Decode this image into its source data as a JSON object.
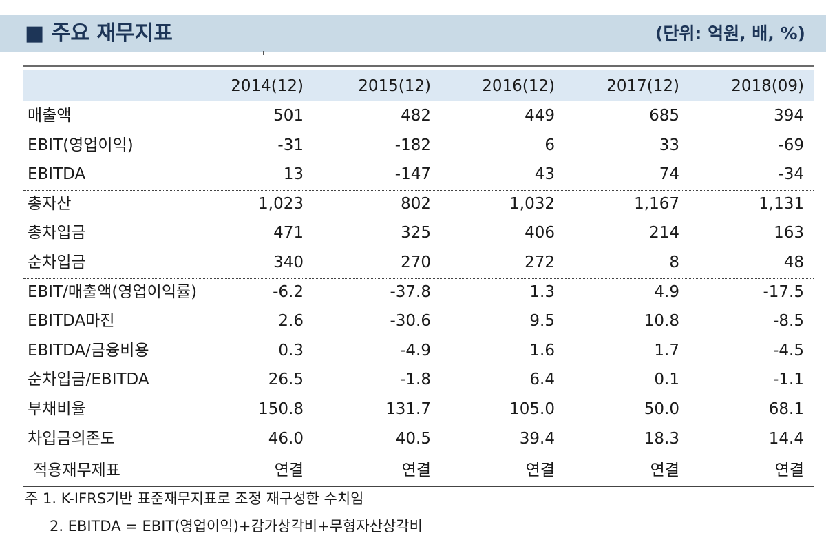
{
  "header": {
    "title": "■ 주요 재무지표",
    "unit": "(단위: 억원, 배, %)"
  },
  "table": {
    "columns": [
      "2014(12)",
      "2015(12)",
      "2016(12)",
      "2017(12)",
      "2018(09)"
    ],
    "groups": [
      [
        {
          "label": "매출액",
          "values": [
            "501",
            "482",
            "449",
            "685",
            "394"
          ]
        },
        {
          "label": "EBIT(영업이익)",
          "values": [
            "-31",
            "-182",
            "6",
            "33",
            "-69"
          ]
        },
        {
          "label": "EBITDA",
          "values": [
            "13",
            "-147",
            "43",
            "74",
            "-34"
          ]
        }
      ],
      [
        {
          "label": "총자산",
          "values": [
            "1,023",
            "802",
            "1,032",
            "1,167",
            "1,131"
          ]
        },
        {
          "label": "총차입금",
          "values": [
            "471",
            "325",
            "406",
            "214",
            "163"
          ]
        },
        {
          "label": "순차입금",
          "values": [
            "340",
            "270",
            "272",
            "8",
            "48"
          ]
        }
      ],
      [
        {
          "label": "EBIT/매출액(영업이익률)",
          "values": [
            "-6.2",
            "-37.8",
            "1.3",
            "4.9",
            "-17.5"
          ]
        },
        {
          "label": "EBITDA마진",
          "values": [
            "2.6",
            "-30.6",
            "9.5",
            "10.8",
            "-8.5"
          ]
        },
        {
          "label": "EBITDA/금융비용",
          "values": [
            "0.3",
            "-4.9",
            "1.6",
            "1.7",
            "-4.5"
          ]
        },
        {
          "label": "순차입금/EBITDA",
          "values": [
            "26.5",
            "-1.8",
            "6.4",
            "0.1",
            "-1.1"
          ]
        },
        {
          "label": "부채비율",
          "values": [
            "150.8",
            "131.7",
            "105.0",
            "50.0",
            "68.1"
          ]
        },
        {
          "label": "차입금의존도",
          "values": [
            "46.0",
            "40.5",
            "39.4",
            "18.3",
            "14.4"
          ]
        }
      ]
    ],
    "footer": {
      "label": "적용재무제표",
      "values": [
        "연결",
        "연결",
        "연결",
        "연결",
        "연결"
      ]
    }
  },
  "notes": [
    "주 1. K-IFRS기반 표준재무지표로 조정 재구성한 수치임",
    "2. EBITDA = EBIT(영업이익)+감가상각비+무형자산상각비"
  ]
}
